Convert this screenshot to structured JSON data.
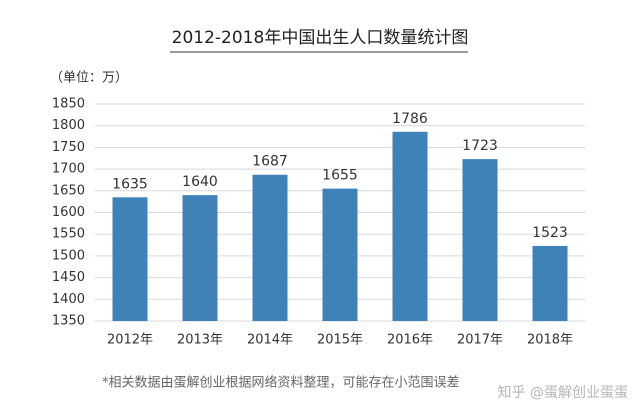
{
  "chart_data": {
    "type": "bar",
    "title": "2012-2018年中国出生人口数量统计图",
    "unit_label": "（单位：万）",
    "categories": [
      "2012年",
      "2013年",
      "2014年",
      "2015年",
      "2016年",
      "2017年",
      "2018年"
    ],
    "values": [
      1635,
      1640,
      1687,
      1655,
      1786,
      1723,
      1523
    ],
    "color": "#3e82b7",
    "ylim": [
      1350,
      1850
    ],
    "yticks": [
      1350,
      1400,
      1450,
      1500,
      1550,
      1600,
      1650,
      1700,
      1750,
      1800,
      1850
    ],
    "grid": true,
    "footnote": "*相关数据由蛋解创业根据网络资料整理，可能存在小范围误差",
    "watermark": "知乎 @蛋解创业蛋蛋"
  }
}
